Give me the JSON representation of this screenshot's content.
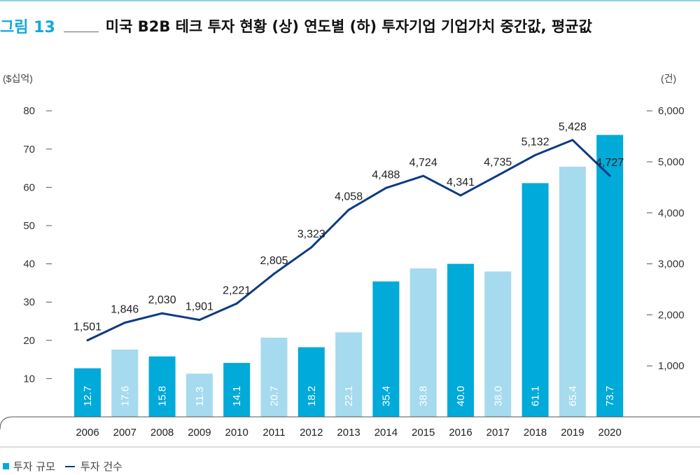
{
  "figure": {
    "label": "그림 13",
    "title": "미국 B2B 테크 투자 현황 (상) 연도별 (하) 투자기업 기업가치 중간값, 평균값"
  },
  "chart_data": {
    "type": "bar+line",
    "categories": [
      "2006",
      "2007",
      "2008",
      "2009",
      "2010",
      "2011",
      "2012",
      "2013",
      "2014",
      "2015",
      "2016",
      "2017",
      "2018",
      "2019",
      "2020"
    ],
    "series": [
      {
        "name": "투자 규모",
        "type": "bar",
        "axis": "left",
        "values": [
          12.7,
          17.6,
          15.8,
          11.3,
          14.1,
          20.7,
          18.2,
          22.1,
          35.4,
          38.8,
          40.0,
          38.0,
          61.1,
          65.4,
          73.7
        ],
        "value_labels": [
          "12.7",
          "17.6",
          "15.8",
          "11.3",
          "14.1",
          "20.7",
          "18.2",
          "22.1",
          "35.4",
          "38.8",
          "40.0",
          "38.0",
          "61.1",
          "65.4",
          "73.7"
        ],
        "shades": [
          "dark",
          "light",
          "dark",
          "light",
          "dark",
          "light",
          "dark",
          "light",
          "dark",
          "light",
          "dark",
          "light",
          "dark",
          "light",
          "dark"
        ]
      },
      {
        "name": "투자 건수",
        "type": "line",
        "axis": "right",
        "values": [
          1501,
          1846,
          2030,
          1901,
          2221,
          2805,
          3323,
          4058,
          4488,
          4724,
          4341,
          4735,
          5132,
          5428,
          4727
        ],
        "value_labels": [
          "1,501",
          "1,846",
          "2,030",
          "1,901",
          "2,221",
          "2,805",
          "3,323",
          "4,058",
          "4,488",
          "4,724",
          "4,341",
          "4,735",
          "5,132",
          "5,428",
          "4,727"
        ]
      }
    ],
    "left_axis": {
      "unit_label": "($십억)",
      "ticks": [
        10,
        20,
        30,
        40,
        50,
        60,
        70,
        80
      ],
      "range": [
        0,
        80
      ]
    },
    "right_axis": {
      "unit_label": "(건)",
      "ticks": [
        1000,
        2000,
        3000,
        4000,
        5000,
        6000
      ],
      "tick_labels": [
        "1,000",
        "2,000",
        "3,000",
        "4,000",
        "5,000",
        "6,000"
      ],
      "range": [
        0,
        6000
      ]
    },
    "colors": {
      "bar_dark": "#00aad9",
      "bar_light": "#a6daee",
      "line": "#0d3b82",
      "label_in_bar": "#ffffff",
      "title_accent": "#11a8dc"
    },
    "legend_position": "bottom-left"
  },
  "legend": [
    {
      "label": "투자 규모",
      "icon": "square-swatch"
    },
    {
      "label": "투자 건수",
      "icon": "line-swatch"
    }
  ]
}
